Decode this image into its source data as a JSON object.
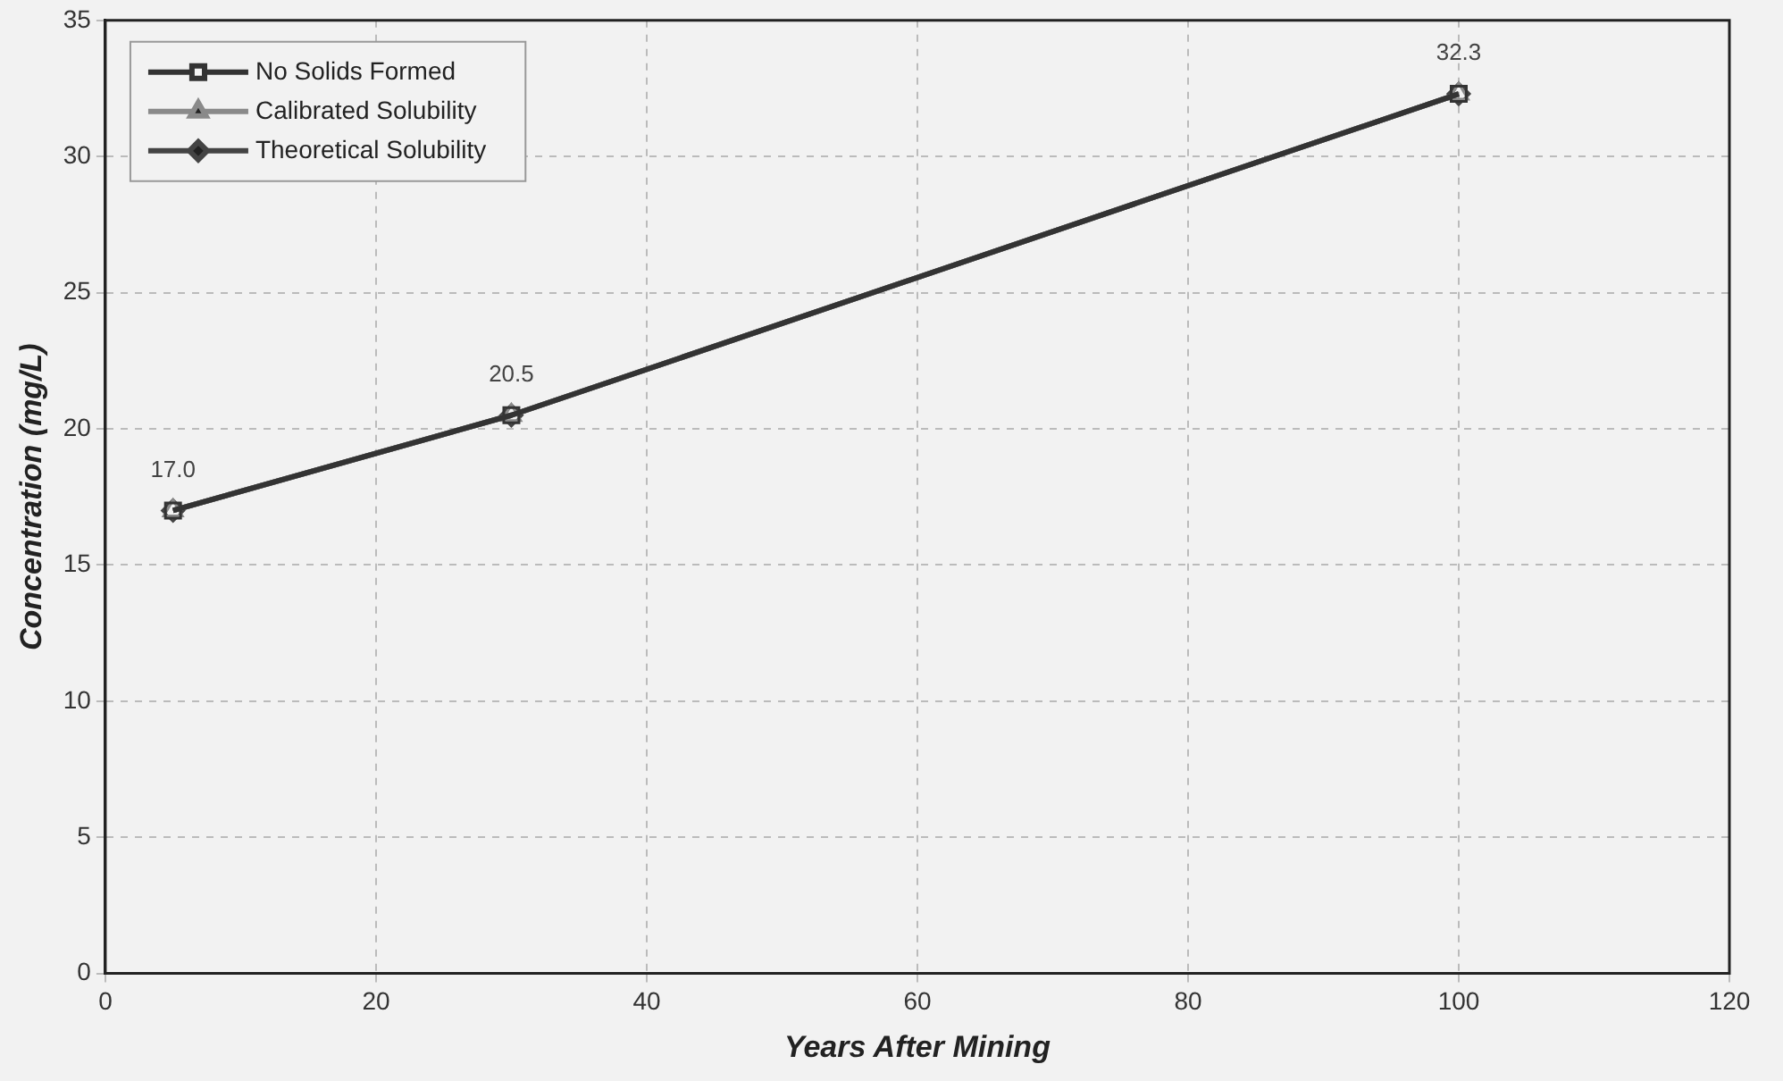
{
  "chart_data": {
    "type": "line",
    "xlabel": "Years After Mining",
    "ylabel": "Concentration (mg/L)",
    "x": [
      5,
      30,
      100
    ],
    "series": [
      {
        "name": "No Solids Formed",
        "color": "#333333",
        "marker": "square",
        "values": [
          17.0,
          20.5,
          32.3
        ],
        "value_labels": [
          "17.0",
          "20.5",
          "32.3"
        ]
      },
      {
        "name": "Calibrated Solubility",
        "color": "#8a8a8a",
        "marker": "triangle",
        "values": [
          17.0,
          20.5,
          32.3
        ]
      },
      {
        "name": "Theoretical Solubility",
        "color": "#444444",
        "marker": "diamond",
        "values": [
          17.0,
          20.5,
          32.3
        ]
      }
    ],
    "xlim": [
      0,
      120
    ],
    "xticks": [
      0,
      20,
      40,
      60,
      80,
      100,
      120
    ],
    "ylim": [
      0,
      35
    ],
    "yticks": [
      0,
      5,
      10,
      15,
      20,
      25,
      30,
      35
    ],
    "grid": true,
    "legend": "top left",
    "line_style": "solid"
  }
}
